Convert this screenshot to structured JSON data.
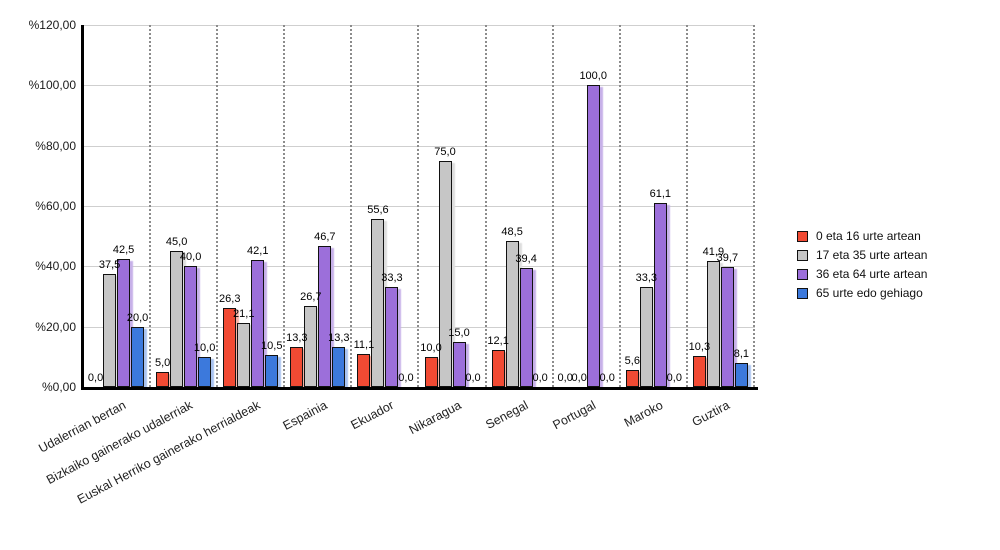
{
  "chart_data": {
    "type": "bar",
    "title": "",
    "xlabel": "",
    "ylabel": "",
    "grid": true,
    "legend_position": "right",
    "categories": [
      "Udalerrian bertan",
      "Bizkaiko gainerako udalerriak",
      "Euskal Herriko gainerako herrialdeak",
      "Espainia",
      "Ekuador",
      "Nikaragua",
      "Senegal",
      "Portugal",
      "Maroko",
      "Guztira"
    ],
    "series": [
      {
        "name": "0 eta 16 urte artean",
        "color": "#f14a33",
        "shadow_color": "#f6b3a6",
        "values": [
          0.0,
          5.0,
          26.3,
          13.3,
          11.1,
          10.0,
          12.1,
          0.0,
          5.6,
          10.3
        ],
        "labels": [
          "0,0",
          "5,0",
          "26,3",
          "13,3",
          "11,1",
          "10,0",
          "12,1",
          "0,0",
          "5,6",
          "10,3"
        ]
      },
      {
        "name": "17 eta 35 urte artean",
        "color": "#c6c6c6",
        "shadow_color": "#dedede",
        "values": [
          37.5,
          45.0,
          21.1,
          26.7,
          55.6,
          75.0,
          48.5,
          0.0,
          33.3,
          41.9
        ],
        "labels": [
          "37,5",
          "45,0",
          "21,1",
          "26,7",
          "55,6",
          "75,0",
          "48,5",
          "0,0",
          "33,3",
          "41,9"
        ]
      },
      {
        "name": "36 eta 64 urte artean",
        "color": "#9c6fda",
        "shadow_color": "#c7b1e9",
        "values": [
          42.5,
          40.0,
          42.1,
          46.7,
          33.3,
          15.0,
          39.4,
          100.0,
          61.1,
          39.7
        ],
        "labels": [
          "42,5",
          "40,0",
          "42,1",
          "46,7",
          "33,3",
          "15,0",
          "39,4",
          "100,0",
          "61,1",
          "39,7"
        ]
      },
      {
        "name": "65 urte edo gehiago",
        "color": "#3c79dc",
        "shadow_color": "#a9c3f0",
        "values": [
          20.0,
          10.0,
          10.5,
          13.3,
          0.0,
          0.0,
          0.0,
          0.0,
          0.0,
          8.1
        ],
        "labels": [
          "20,0",
          "10,0",
          "10,5",
          "13,3",
          "0,0",
          "0,0",
          "0,0",
          "0,0",
          "0,0",
          "8,1"
        ]
      }
    ],
    "y_axis": {
      "min": 0,
      "max": 120,
      "step": 20,
      "tick_values": [
        120,
        100,
        80,
        60,
        40,
        20,
        0
      ],
      "tick_labels": [
        "%120,00",
        "%100,00",
        "%80,00",
        "%60,00",
        "%40,00",
        "%20,00",
        "%0,00"
      ]
    }
  },
  "colors": {
    "axis": "#000000",
    "gridline": "#cfcfcf",
    "separator": "#8c8c8c",
    "bar_border": "#111111",
    "background": "#ffffff"
  }
}
